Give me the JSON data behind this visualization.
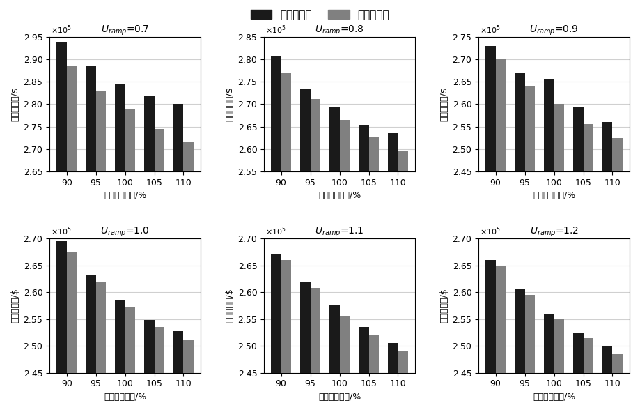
{
  "subplots": [
    {
      "title_u": "U",
      "title_sub": "ramp",
      "title_val": "=0.7",
      "ylim": [
        2.65,
        2.95
      ],
      "yticks": [
        2.65,
        2.7,
        2.75,
        2.8,
        2.85,
        2.9,
        2.95
      ],
      "black": [
        2.94,
        2.885,
        2.845,
        2.82,
        2.8
      ],
      "gray": [
        2.885,
        2.83,
        2.79,
        2.745,
        2.715
      ]
    },
    {
      "title_u": "U",
      "title_sub": "ramp",
      "title_val": "=0.8",
      "ylim": [
        2.55,
        2.85
      ],
      "yticks": [
        2.55,
        2.6,
        2.65,
        2.7,
        2.75,
        2.8,
        2.85
      ],
      "black": [
        2.807,
        2.735,
        2.695,
        2.652,
        2.635
      ],
      "gray": [
        2.77,
        2.712,
        2.665,
        2.628,
        2.595
      ]
    },
    {
      "title_u": "U",
      "title_sub": "ramp",
      "title_val": "=0.9",
      "ylim": [
        2.45,
        2.75
      ],
      "yticks": [
        2.45,
        2.5,
        2.55,
        2.6,
        2.65,
        2.7,
        2.75
      ],
      "black": [
        2.73,
        2.67,
        2.655,
        2.595,
        2.56
      ],
      "gray": [
        2.7,
        2.64,
        2.6,
        2.555,
        2.525
      ]
    },
    {
      "title_u": "U",
      "title_sub": "ramp",
      "title_val": "=1.0",
      "ylim": [
        2.45,
        2.7
      ],
      "yticks": [
        2.45,
        2.5,
        2.55,
        2.6,
        2.65,
        2.7
      ],
      "black": [
        2.695,
        2.632,
        2.585,
        2.548,
        2.528
      ],
      "gray": [
        2.675,
        2.62,
        2.572,
        2.535,
        2.51
      ]
    },
    {
      "title_u": "U",
      "title_sub": "ramp",
      "title_val": "=1.1",
      "ylim": [
        2.45,
        2.7
      ],
      "yticks": [
        2.45,
        2.5,
        2.55,
        2.6,
        2.65,
        2.7
      ],
      "black": [
        2.67,
        2.62,
        2.575,
        2.535,
        2.505
      ],
      "gray": [
        2.66,
        2.608,
        2.555,
        2.52,
        2.49
      ]
    },
    {
      "title_u": "U",
      "title_sub": "ramp",
      "title_val": "=1.2",
      "ylim": [
        2.45,
        2.7
      ],
      "yticks": [
        2.45,
        2.5,
        2.55,
        2.6,
        2.65,
        2.7
      ],
      "black": [
        2.66,
        2.605,
        2.56,
        2.525,
        2.5
      ],
      "gray": [
        2.65,
        2.595,
        2.55,
        2.515,
        2.485
      ]
    }
  ],
  "categories": [
    90,
    95,
    100,
    105,
    110
  ],
  "black_color": "#1a1a1a",
  "gray_color": "#808080",
  "legend_black": "两阶段鲁棒",
  "legend_gray": "多阶段鲁棒",
  "ylabel": "总运行成本/$",
  "xlabel": "线路传输容量/%",
  "bar_width": 0.35,
  "figsize": [
    9.19,
    5.91
  ],
  "dpi": 100
}
